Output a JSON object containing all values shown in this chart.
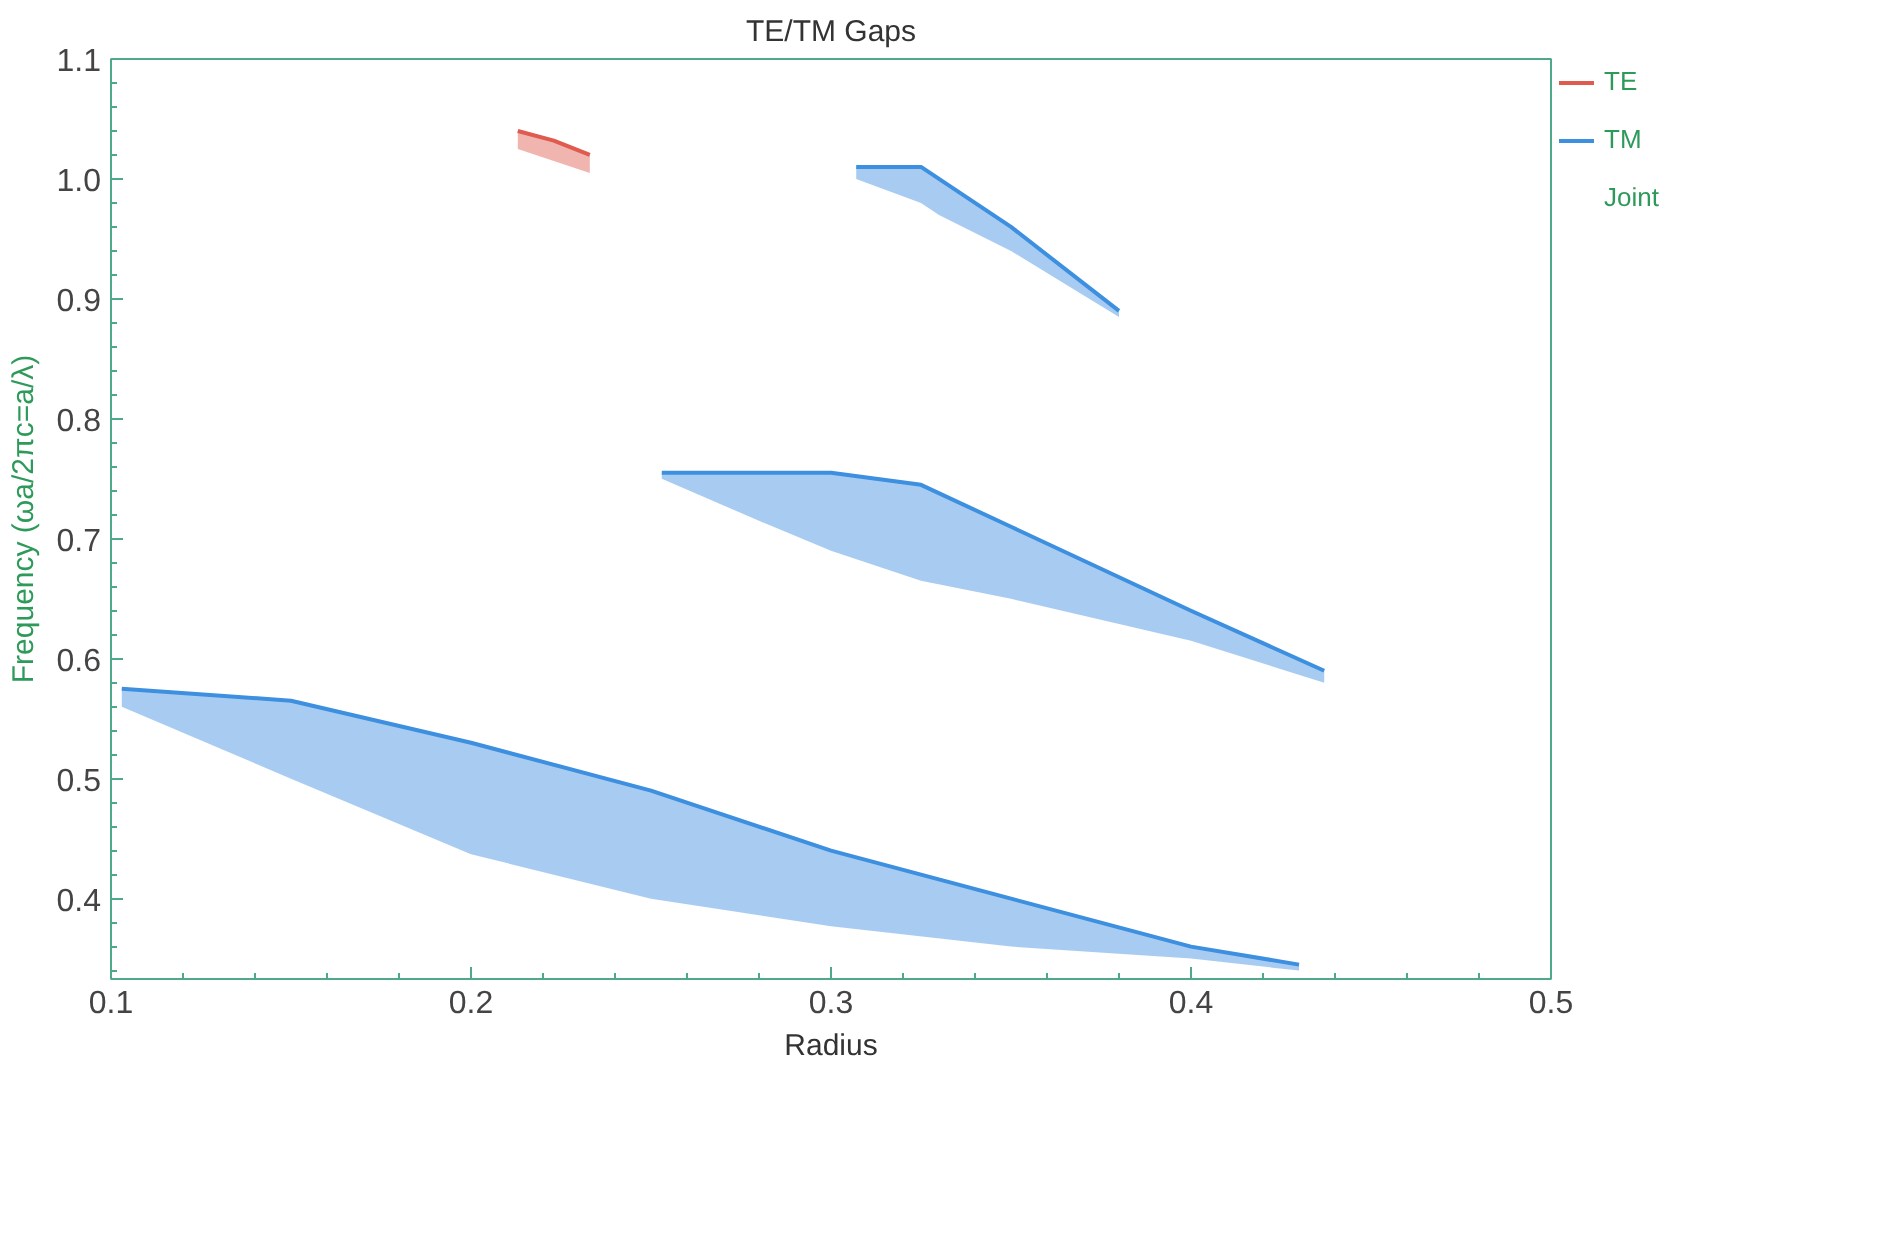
{
  "chart_data": {
    "type": "line",
    "title": "TE/TM Gaps",
    "xlabel": "Radius",
    "ylabel": "Frequency (ωa/2πc=a/λ)",
    "xlim": [
      0.1,
      0.5
    ],
    "xticks": [
      0.1,
      0.2,
      0.3,
      0.4,
      0.5
    ],
    "ylim": [
      0.333,
      1.1
    ],
    "yticks": [
      0.4,
      0.5,
      0.6,
      0.7,
      0.8,
      0.9,
      {
        "value": 1.0,
        "label": "1.0"
      },
      1.1
    ],
    "grid": false,
    "legend": "top right",
    "series": [
      {
        "name": "TE",
        "color": "#e05a50",
        "x": [
          0.213,
          0.223,
          0.233
        ],
        "values": [
          1.04,
          1.032,
          1.02
        ],
        "upper": [
          1.04,
          1.032,
          1.02
        ],
        "lower": [
          1.025,
          1.015,
          1.005
        ]
      },
      {
        "name": "TM",
        "color": "#3d8fe0",
        "x": [
          0.103,
          0.15,
          0.2,
          0.25,
          0.3,
          0.35,
          0.4,
          0.43
        ],
        "values": [
          0.575,
          0.565,
          0.53,
          0.49,
          0.44,
          0.4,
          0.36,
          0.345
        ],
        "upper": [
          0.575,
          0.565,
          0.53,
          0.49,
          0.44,
          0.4,
          0.36,
          0.345
        ],
        "lower": [
          0.56,
          0.5,
          0.437,
          0.4,
          0.377,
          0.36,
          0.35,
          0.34
        ]
      },
      {
        "color": "#3d8fe0",
        "x": [
          0.253,
          0.28,
          0.3,
          0.325,
          0.35,
          0.4,
          0.437
        ],
        "values": [
          0.755,
          0.755,
          0.755,
          0.745,
          0.71,
          0.64,
          0.59
        ],
        "upper": [
          0.755,
          0.755,
          0.755,
          0.745,
          0.71,
          0.64,
          0.59
        ],
        "lower": [
          0.75,
          0.715,
          0.69,
          0.665,
          0.65,
          0.615,
          0.58
        ]
      },
      {
        "color": "#3d8fe0",
        "x": [
          0.307,
          0.325,
          0.33,
          0.35,
          0.38
        ],
        "values": [
          1.01,
          1.01,
          1.0,
          0.96,
          0.89
        ],
        "upper": [
          1.01,
          1.01,
          1.0,
          0.96,
          0.89
        ],
        "lower": [
          1.0,
          0.98,
          0.97,
          0.94,
          0.885
        ]
      }
    ],
    "annotations": [
      "Joint"
    ]
  }
}
